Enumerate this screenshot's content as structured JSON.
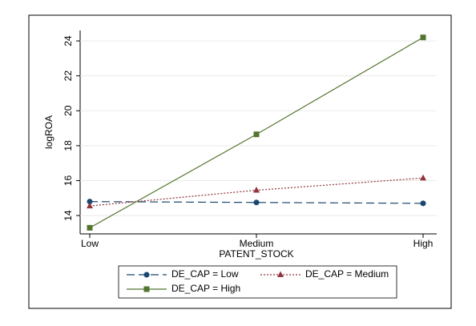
{
  "chart_data": {
    "type": "line",
    "x_label": "PATENT_STOCK",
    "y_label": "logROA",
    "categories": [
      "Low",
      "Medium",
      "High"
    ],
    "ylim": [
      12.95,
      24.6
    ],
    "yticks": [
      14,
      16,
      18,
      20,
      22,
      24
    ],
    "grid": true,
    "legend": "bottom",
    "series": [
      {
        "name": "DE_CAP = Low",
        "color": "#1a476f",
        "linestyle": "dashed",
        "marker": "circle",
        "values": [
          14.8,
          14.75,
          14.7
        ]
      },
      {
        "name": "DE_CAP = Medium",
        "color": "#90353b",
        "linestyle": "dotted",
        "marker": "triangle",
        "values": [
          14.55,
          15.45,
          16.15
        ]
      },
      {
        "name": "DE_CAP = High",
        "color": "#55752f",
        "linestyle": "solid",
        "marker": "square",
        "values": [
          13.3,
          18.65,
          24.2
        ]
      }
    ]
  }
}
